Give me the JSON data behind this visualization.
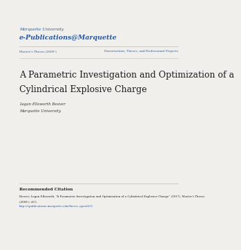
{
  "bg_color": "#f0efeb",
  "header_line1": "Marquette University",
  "header_line2": "e-Publications@Marquette",
  "header_color": "#2b5899",
  "subheader_left": "Master’s Theses (2009-)",
  "subheader_right": "Dissertations, Theses, and Professional Projects",
  "subheader_color": "#2b5899",
  "divider_color": "#bbbbbb",
  "title_line1": "A Parametric Investigation and Optimization of a",
  "title_line2": "Cylindrical Explosive Charge",
  "title_color": "#1a1a1a",
  "author_name": "Logan Ellsworth Beaver",
  "author_affil": "Marquette University",
  "author_color": "#333333",
  "rec_cite_header": "Recommended Citation",
  "rec_cite_body1": "Beaver, Logan Ellsworth, “A Parametric Investigation and Optimization of a Cylindrical Explosive Charge” (2017). Master’s Theses",
  "rec_cite_body2": "(2009-). 415.",
  "rec_cite_body3": "http://epublications.marquette.edu/theses_open/415",
  "rec_cite_color": "#222222",
  "rec_cite_link_color": "#2b5899"
}
